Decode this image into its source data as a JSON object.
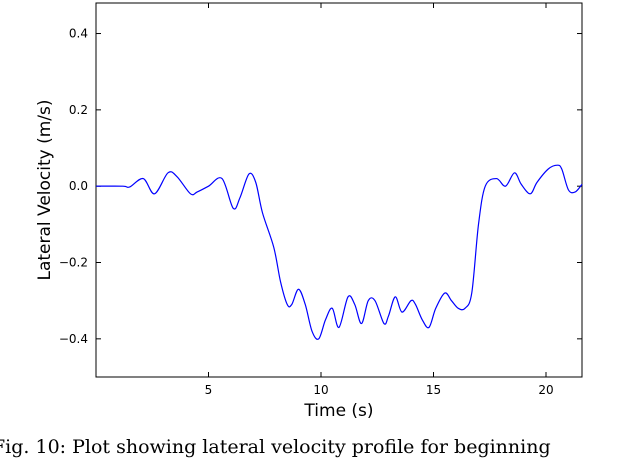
{
  "chart_data": {
    "type": "line",
    "title": "",
    "xlabel": "Time (s)",
    "ylabel": "Lateral Velocity (m/s)",
    "xlim": [
      0,
      21.6
    ],
    "ylim": [
      -0.5,
      0.48
    ],
    "x_ticks": [
      5,
      10,
      15,
      20
    ],
    "y_ticks": [
      0.4,
      0.2,
      0.0,
      -0.2,
      -0.4
    ],
    "y_tick_labels": [
      "0.4",
      "0.2",
      "0.0",
      "−0.2",
      "−0.4"
    ],
    "grid": false,
    "series": [
      {
        "color": "#0000ff",
        "x": [
          0,
          1.2,
          1.5,
          2.1,
          2.6,
          3.2,
          3.6,
          4.2,
          4.5,
          5.0,
          5.6,
          6.1,
          6.4,
          6.8,
          7.1,
          7.4,
          7.9,
          8.2,
          8.5,
          8.7,
          9.0,
          9.3,
          9.6,
          9.9,
          10.2,
          10.5,
          10.8,
          11.2,
          11.5,
          11.8,
          12.1,
          12.4,
          12.8,
          13.0,
          13.3,
          13.6,
          14.0,
          14.2,
          14.5,
          14.8,
          15.1,
          15.5,
          15.8,
          16.1,
          16.4,
          16.7,
          17.0,
          17.3,
          17.8,
          18.2,
          18.6,
          18.9,
          19.3,
          19.6,
          20.1,
          20.5,
          20.7,
          21.0,
          21.3,
          21.6
        ],
        "y": [
          0.0,
          0.0,
          -0.002,
          0.02,
          -0.02,
          0.035,
          0.025,
          -0.02,
          -0.015,
          0.0,
          0.02,
          -0.058,
          -0.03,
          0.032,
          0.01,
          -0.07,
          -0.16,
          -0.25,
          -0.31,
          -0.31,
          -0.27,
          -0.31,
          -0.38,
          -0.4,
          -0.35,
          -0.32,
          -0.37,
          -0.29,
          -0.31,
          -0.36,
          -0.3,
          -0.3,
          -0.36,
          -0.34,
          -0.29,
          -0.33,
          -0.3,
          -0.31,
          -0.35,
          -0.37,
          -0.32,
          -0.28,
          -0.3,
          -0.32,
          -0.32,
          -0.28,
          -0.1,
          0.0,
          0.02,
          0.0,
          0.035,
          0.005,
          -0.02,
          0.01,
          0.045,
          0.055,
          0.045,
          -0.01,
          -0.015,
          0.005
        ]
      }
    ]
  },
  "caption": "Fig. 10: Plot showing lateral velocity profile for beginning"
}
